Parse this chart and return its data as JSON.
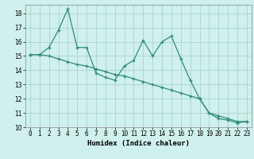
{
  "title": "",
  "xlabel": "Humidex (Indice chaleur)",
  "ylabel": "",
  "x": [
    0,
    1,
    2,
    3,
    4,
    5,
    6,
    7,
    8,
    9,
    10,
    11,
    12,
    13,
    14,
    15,
    16,
    17,
    18,
    19,
    20,
    21,
    22,
    23
  ],
  "line1": [
    15.1,
    15.1,
    15.6,
    16.8,
    18.3,
    15.6,
    15.6,
    13.8,
    13.5,
    13.3,
    14.3,
    14.7,
    16.1,
    15.0,
    16.0,
    16.4,
    14.8,
    13.3,
    12.0,
    11.0,
    10.6,
    10.5,
    10.3,
    10.4
  ],
  "line2": [
    15.1,
    15.1,
    15.0,
    14.8,
    14.6,
    14.4,
    14.3,
    14.1,
    13.9,
    13.7,
    13.6,
    13.4,
    13.2,
    13.0,
    12.8,
    12.6,
    12.4,
    12.2,
    12.0,
    11.0,
    10.8,
    10.6,
    10.4,
    10.4
  ],
  "line_color": "#2e8b7a",
  "bg_color": "#cff0ec",
  "grid_color": "#aad4ce",
  "xlim": [
    -0.5,
    23.5
  ],
  "ylim": [
    10,
    18.6
  ],
  "yticks": [
    10,
    11,
    12,
    13,
    14,
    15,
    16,
    17,
    18
  ],
  "xticks": [
    0,
    1,
    2,
    3,
    4,
    5,
    6,
    7,
    8,
    9,
    10,
    11,
    12,
    13,
    14,
    15,
    16,
    17,
    18,
    19,
    20,
    21,
    22,
    23
  ],
  "marker": "+",
  "markersize": 3.5,
  "markeredgewidth": 0.9,
  "linewidth": 0.9,
  "tick_fontsize": 5.5,
  "xlabel_fontsize": 6.5
}
